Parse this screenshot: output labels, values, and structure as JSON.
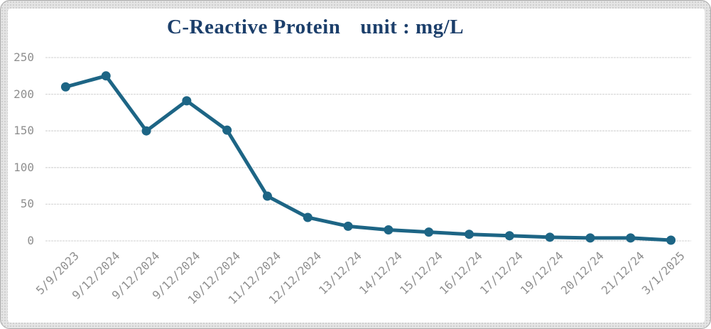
{
  "card": {
    "border_color": "#a9a9a9",
    "frame_color": "#e4e4e4",
    "panel_color": "#ffffff"
  },
  "chart": {
    "title": "C-Reactive Protein",
    "unit_label": "unit : mg/L",
    "title_color": "#1c3f6b",
    "line_color": "#1d6585",
    "marker_color": "#1d6585",
    "grid_color": "#d9d9d9",
    "axis_label_color": "#8f8f8f"
  },
  "chart_data": {
    "type": "line",
    "title": "C-Reactive Protein",
    "unit": "mg/L",
    "categories": [
      "5/9/2023",
      "9/12/2024",
      "9/12/2024",
      "9/12/2024",
      "10/12/2024",
      "11/12/2024",
      "12/12/2024",
      "13/12/24",
      "14/12/24",
      "15/12/24",
      "16/12/24",
      "17/12/24",
      "19/12/24",
      "20/12/24",
      "21/12/24",
      "3/1/2025"
    ],
    "values": [
      210,
      225,
      150,
      191,
      151,
      61,
      32,
      20,
      15,
      12,
      9,
      7,
      5,
      4,
      4,
      1
    ],
    "ylim": [
      0,
      250
    ],
    "yticks": [
      0,
      50,
      100,
      150,
      200,
      250
    ],
    "grid": true,
    "legend": false,
    "marker": "circle",
    "xlabel_rotation_deg": -45
  }
}
